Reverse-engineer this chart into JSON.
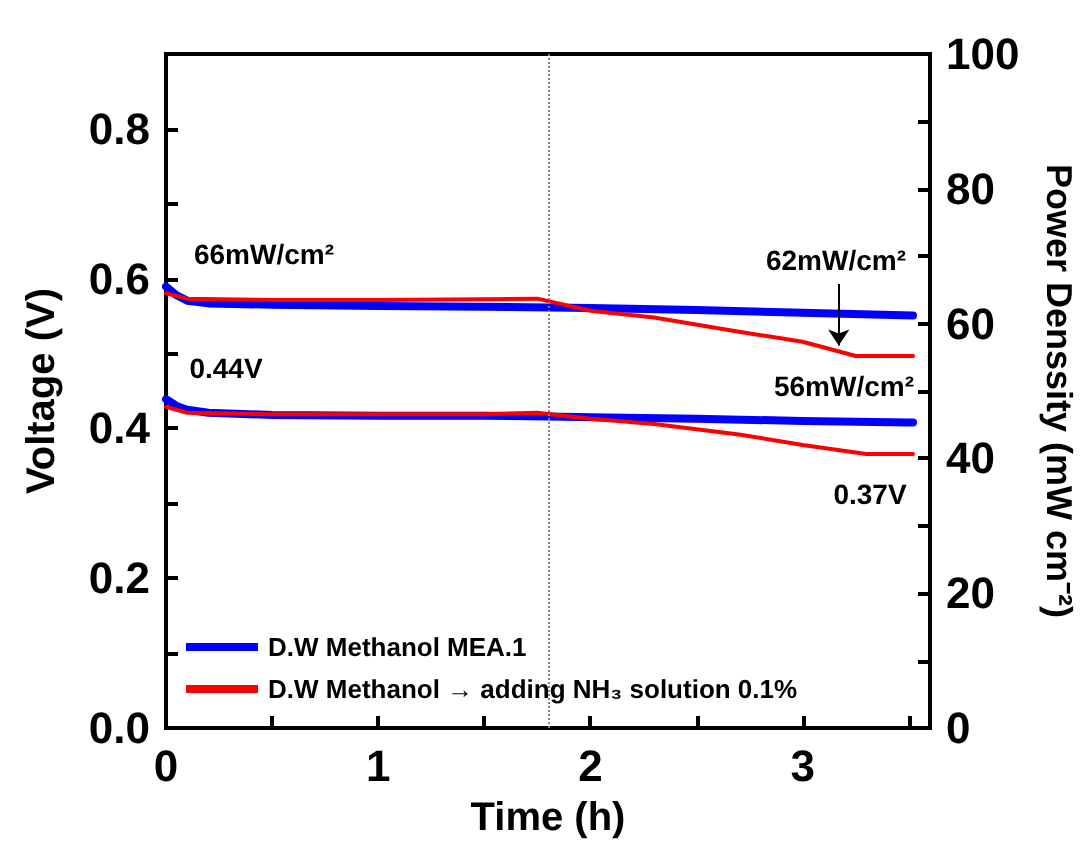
{
  "chart_data": {
    "type": "line",
    "xlabel": "Time (h)",
    "ylabel": "Voltage (V)",
    "y2label": "Power Denssity (mW cm⁻²)",
    "xlim": [
      0,
      3.6
    ],
    "xticks": [
      0,
      {
        "value": 0.5,
        "label": null
      },
      1,
      {
        "value": 1.5,
        "label": null
      },
      2,
      {
        "value": 2.5,
        "label": null
      },
      3,
      {
        "value": 3.5,
        "label": null
      }
    ],
    "ylim": [
      0,
      0.9
    ],
    "yticks": [
      {
        "value": 0,
        "label": "0.0"
      },
      {
        "value": 0.1,
        "label": null
      },
      0.2,
      {
        "value": 0.3,
        "label": null
      },
      0.4,
      {
        "value": 0.5,
        "label": null
      },
      0.6,
      {
        "value": 0.7,
        "label": null
      },
      0.8
    ],
    "y2lim": [
      0,
      100
    ],
    "y2ticks": [
      0,
      {
        "value": 10,
        "label": null
      },
      20,
      {
        "value": 30,
        "label": null
      },
      40,
      {
        "value": 50,
        "label": null
      },
      60,
      {
        "value": 70,
        "label": null
      },
      80,
      {
        "value": 90,
        "label": null
      },
      100
    ],
    "grid": false,
    "legend": "bottom left",
    "marker": "none",
    "line_style": "solid",
    "series": [
      {
        "name": "D.W Methanol MEA.1",
        "color": "#0000ff",
        "x": [
          0,
          0.05,
          0.1,
          0.2,
          0.5,
          1.0,
          1.5,
          1.8,
          2.0,
          2.5,
          3.0,
          3.5,
          3.52
        ],
        "values": [
          0.439,
          0.43,
          0.425,
          0.421,
          0.418,
          0.417,
          0.417,
          0.416,
          0.415,
          0.413,
          0.41,
          0.408,
          0.408
        ]
      },
      {
        "name": "D.W Methanol → adding NH₃ solution 0.1%",
        "color": "#ff0000",
        "x": [
          0,
          0.1,
          0.5,
          1.0,
          1.5,
          1.75,
          2.0,
          2.3,
          2.7,
          3.0,
          3.3,
          3.52
        ],
        "values": [
          0.429,
          0.421,
          0.419,
          0.419,
          0.419,
          0.421,
          0.413,
          0.406,
          0.392,
          0.378,
          0.366,
          0.366
        ]
      },
      {
        "color": "#0000ff",
        "axis": "y2",
        "x": [
          0,
          0.05,
          0.1,
          0.2,
          0.5,
          1.0,
          1.5,
          2.0,
          2.5,
          3.0,
          3.52
        ],
        "values": [
          65.5,
          64.2,
          63.4,
          63.0,
          62.8,
          62.6,
          62.5,
          62.3,
          62.0,
          61.6,
          61.2
        ]
      },
      {
        "color": "#ff0000",
        "axis": "y2",
        "x": [
          0,
          0.1,
          0.5,
          1.0,
          1.5,
          1.75,
          2.0,
          2.3,
          2.7,
          3.0,
          3.25,
          3.52
        ],
        "values": [
          64.5,
          63.7,
          63.5,
          63.5,
          63.6,
          63.7,
          61.9,
          60.9,
          58.8,
          57.3,
          55.2,
          55.2
        ]
      }
    ],
    "ref_lines": [
      {
        "axis": "x",
        "value": 1.8,
        "label": null,
        "color": "#808080",
        "line_style": "dotted"
      }
    ],
    "annotations": [
      "66mW/cm²",
      "0.44V",
      {
        "text": "62mW/cm²",
        "x": 3.17,
        "y": 0.5
      },
      "56mW/cm²",
      "0.37V"
    ]
  }
}
